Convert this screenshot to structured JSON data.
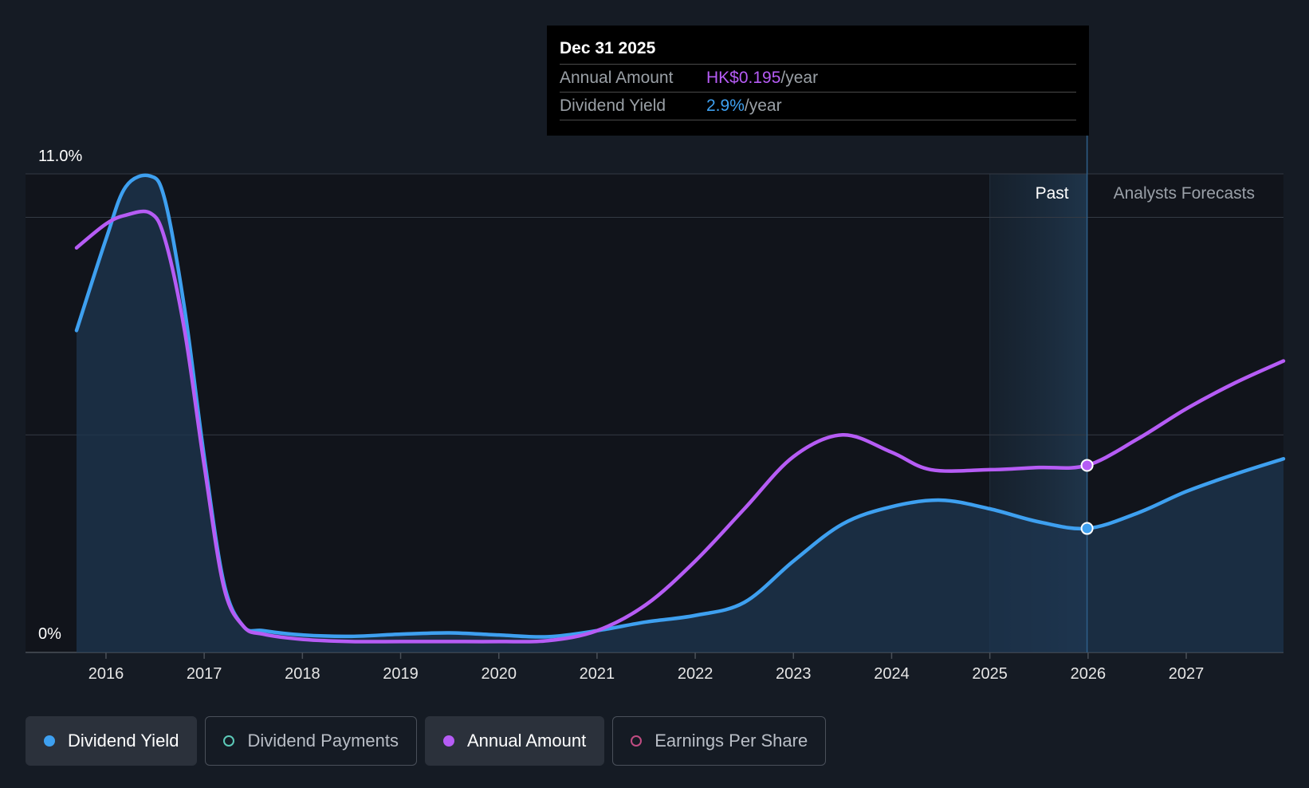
{
  "chart_data": {
    "type": "line",
    "y_axis": {
      "min": 0,
      "max": 11.0,
      "top_label": "11.0%",
      "bottom_label": "0%"
    },
    "x_ticks": [
      "2016",
      "2017",
      "2018",
      "2019",
      "2020",
      "2021",
      "2022",
      "2023",
      "2024",
      "2025",
      "2026",
      "2027"
    ],
    "bands": {
      "past_label": "Past",
      "forecast_label": "Analysts Forecasts"
    },
    "series": [
      {
        "name": "Dividend Yield",
        "color": "#3ea0f0",
        "filled": true,
        "points": [
          [
            2015.7,
            7.4
          ],
          [
            2016.0,
            9.5
          ],
          [
            2016.2,
            10.7
          ],
          [
            2016.45,
            10.95
          ],
          [
            2016.6,
            10.4
          ],
          [
            2016.8,
            7.9
          ],
          [
            2017.0,
            4.5
          ],
          [
            2017.2,
            1.6
          ],
          [
            2017.4,
            0.6
          ],
          [
            2017.6,
            0.5
          ],
          [
            2018.0,
            0.4
          ],
          [
            2018.5,
            0.37
          ],
          [
            2019.0,
            0.42
          ],
          [
            2019.5,
            0.45
          ],
          [
            2020.0,
            0.4
          ],
          [
            2020.5,
            0.36
          ],
          [
            2021.0,
            0.5
          ],
          [
            2021.5,
            0.7
          ],
          [
            2022.0,
            0.85
          ],
          [
            2022.5,
            1.15
          ],
          [
            2023.0,
            2.1
          ],
          [
            2023.5,
            2.95
          ],
          [
            2024.0,
            3.35
          ],
          [
            2024.5,
            3.5
          ],
          [
            2025.0,
            3.3
          ],
          [
            2025.5,
            3.0
          ],
          [
            2025.99,
            2.85
          ],
          [
            2026.5,
            3.2
          ],
          [
            2027.0,
            3.7
          ],
          [
            2027.5,
            4.1
          ],
          [
            2027.99,
            4.45
          ]
        ]
      },
      {
        "name": "Annual Amount",
        "color": "#b65cf5",
        "filled": false,
        "points": [
          [
            2015.7,
            9.3
          ],
          [
            2016.0,
            9.85
          ],
          [
            2016.2,
            10.05
          ],
          [
            2016.45,
            10.1
          ],
          [
            2016.6,
            9.5
          ],
          [
            2016.8,
            7.4
          ],
          [
            2017.0,
            4.3
          ],
          [
            2017.2,
            1.5
          ],
          [
            2017.4,
            0.6
          ],
          [
            2017.6,
            0.42
          ],
          [
            2018.0,
            0.3
          ],
          [
            2018.5,
            0.25
          ],
          [
            2019.0,
            0.25
          ],
          [
            2019.5,
            0.25
          ],
          [
            2020.0,
            0.25
          ],
          [
            2020.5,
            0.27
          ],
          [
            2021.0,
            0.5
          ],
          [
            2021.5,
            1.1
          ],
          [
            2022.0,
            2.1
          ],
          [
            2022.5,
            3.3
          ],
          [
            2023.0,
            4.5
          ],
          [
            2023.5,
            5.0
          ],
          [
            2024.0,
            4.6
          ],
          [
            2024.4,
            4.2
          ],
          [
            2025.0,
            4.2
          ],
          [
            2025.5,
            4.25
          ],
          [
            2025.99,
            4.3
          ],
          [
            2026.5,
            4.9
          ],
          [
            2027.0,
            5.6
          ],
          [
            2027.5,
            6.2
          ],
          [
            2027.99,
            6.7
          ]
        ]
      }
    ],
    "highlight": {
      "x": 2025.99,
      "date_label": "Dec 31 2025",
      "annual_amount_key": "Annual Amount",
      "annual_amount_value": "HK$0.195",
      "annual_amount_unit": "/year",
      "dividend_yield_key": "Dividend Yield",
      "dividend_yield_value": "2.9%",
      "dividend_yield_unit": "/year"
    }
  },
  "legend": [
    {
      "label": "Dividend Yield",
      "color": "#3ea0f0",
      "active": true
    },
    {
      "label": "Dividend Payments",
      "color": "#5cc9b8",
      "active": false
    },
    {
      "label": "Annual Amount",
      "color": "#b65cf5",
      "active": true
    },
    {
      "label": "Earnings Per Share",
      "color": "#c04c82",
      "active": false
    }
  ]
}
